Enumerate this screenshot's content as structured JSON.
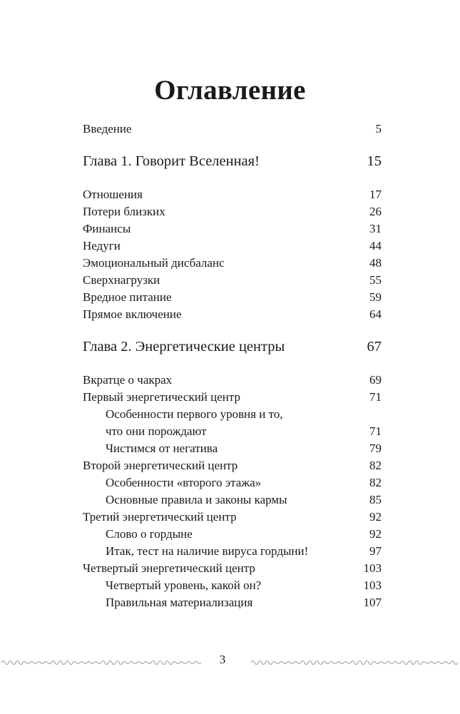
{
  "title": "Оглавление",
  "entries": [
    {
      "type": "entry",
      "label": "Введение",
      "page": "5"
    },
    {
      "type": "chapter",
      "label": "Глава 1. Говорит Вселенная!",
      "page": "15"
    },
    {
      "type": "entry",
      "label": "Отношения",
      "page": "17"
    },
    {
      "type": "entry",
      "label": "Потери близких",
      "page": "26"
    },
    {
      "type": "entry",
      "label": "Финансы",
      "page": "31"
    },
    {
      "type": "entry",
      "label": "Недуги",
      "page": "44"
    },
    {
      "type": "entry",
      "label": "Эмоциональный дисбаланс",
      "page": "48"
    },
    {
      "type": "entry",
      "label": "Сверхнагрузки",
      "page": "55"
    },
    {
      "type": "entry",
      "label": "Вредное питание",
      "page": "59"
    },
    {
      "type": "entry",
      "label": "Прямое включение",
      "page": "64"
    },
    {
      "type": "chapter",
      "label": "Глава 2. Энергетические центры",
      "page": "67"
    },
    {
      "type": "entry",
      "label": "Вкратце о чакрах",
      "page": "69"
    },
    {
      "type": "entry",
      "label": "Первый энергетический центр",
      "page": "71"
    },
    {
      "type": "sub",
      "label": "Особенности первого уровня и то,",
      "page": ""
    },
    {
      "type": "sub",
      "label": "что они порождают",
      "page": "71"
    },
    {
      "type": "sub",
      "label": "Чистимся от негатива",
      "page": "79"
    },
    {
      "type": "entry",
      "label": "Второй энергетический центр",
      "page": "82"
    },
    {
      "type": "sub",
      "label": "Особенности «второго этажа»",
      "page": "82"
    },
    {
      "type": "sub",
      "label": "Основные правила и законы кармы",
      "page": "85"
    },
    {
      "type": "entry",
      "label": "Третий энергетический центр",
      "page": "92"
    },
    {
      "type": "sub",
      "label": "Слово о гордыне",
      "page": "92"
    },
    {
      "type": "sub",
      "label": "Итак, тест на наличие вируса гордыни!",
      "page": "97"
    },
    {
      "type": "entry",
      "label": "Четвертый энергетический центр",
      "page": "103"
    },
    {
      "type": "sub",
      "label": "Четвертый уровень, какой он?",
      "page": "103"
    },
    {
      "type": "sub",
      "label": "Правильная материализация",
      "page": "107"
    }
  ],
  "page_number": "3",
  "colors": {
    "text": "#1a1a1a",
    "ornament": "#9a9a9a"
  }
}
